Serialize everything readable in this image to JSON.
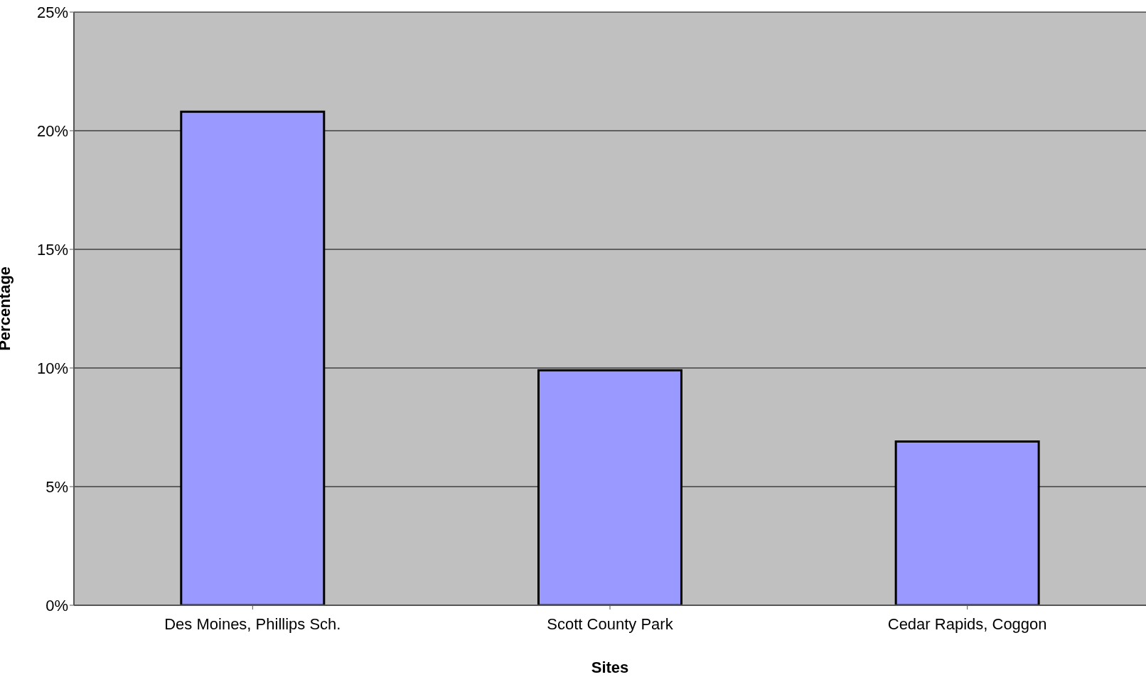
{
  "chart_data": {
    "type": "bar",
    "xlabel": "Sites",
    "ylabel": "Percentage",
    "categories": [
      "Des Moines, Phillips Sch.",
      "Scott County Park",
      "Cedar Rapids, Coggon"
    ],
    "values": [
      20.8,
      9.9,
      6.9
    ],
    "color": "#9999ff",
    "ylim": [
      0,
      25
    ],
    "yticks": [
      {
        "value": 0,
        "label": "0%"
      },
      {
        "value": 5,
        "label": "5%"
      },
      {
        "value": 10,
        "label": "10%"
      },
      {
        "value": 15,
        "label": "15%"
      },
      {
        "value": 20,
        "label": "20%"
      },
      {
        "value": 25,
        "label": "25%"
      }
    ],
    "grid": "y",
    "legend": false
  }
}
